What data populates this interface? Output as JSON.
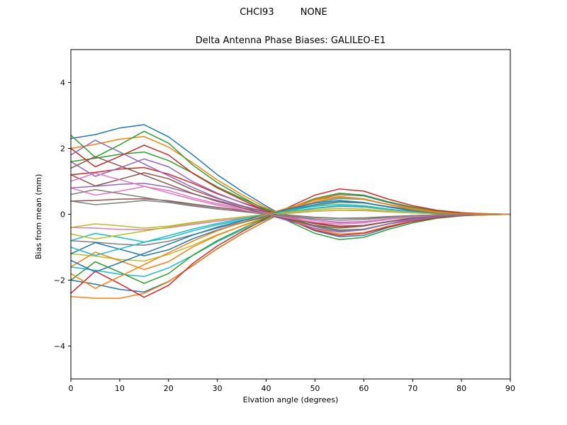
{
  "figure": {
    "suptitle": "CHCI93         NONE"
  },
  "chart_data": {
    "type": "line",
    "title": "Delta Antenna Phase Biases: GALILEO-E1",
    "suptitle": "CHCI93         NONE",
    "xlabel": "Elvation angle (degrees)",
    "ylabel": "Bias from mean (mm)",
    "xlim": [
      0,
      90
    ],
    "ylim": [
      -5,
      5
    ],
    "xticks": [
      0,
      10,
      20,
      30,
      40,
      50,
      60,
      70,
      80,
      90
    ],
    "yticks": [
      -4,
      -2,
      0,
      2,
      4
    ],
    "grid": false,
    "legend": "none",
    "x": [
      0,
      5,
      10,
      15,
      20,
      25,
      30,
      35,
      40,
      45,
      50,
      55,
      60,
      65,
      70,
      75,
      80,
      85,
      90
    ],
    "series": [
      {
        "color": "#1f77b4",
        "values": [
          2.3,
          2.42,
          2.62,
          2.72,
          2.35,
          1.8,
          1.2,
          0.7,
          0.25,
          -0.18,
          -0.5,
          -0.68,
          -0.64,
          -0.4,
          -0.22,
          -0.1,
          -0.04,
          -0.02,
          0
        ]
      },
      {
        "color": "#ff7f0e",
        "values": [
          2.0,
          2.12,
          2.28,
          2.36,
          2.04,
          1.56,
          1.04,
          0.6,
          0.2,
          -0.16,
          -0.44,
          -0.6,
          -0.56,
          -0.36,
          -0.2,
          -0.1,
          -0.04,
          -0.02,
          0
        ]
      },
      {
        "color": "#2ca02c",
        "values": [
          1.6,
          1.7,
          1.82,
          1.89,
          1.63,
          1.25,
          0.83,
          0.48,
          0.16,
          -0.13,
          -0.35,
          -0.48,
          -0.45,
          -0.29,
          -0.16,
          -0.08,
          -0.03,
          -0.02,
          0
        ]
      },
      {
        "color": "#d62728",
        "values": [
          1.2,
          1.27,
          1.37,
          1.42,
          1.22,
          0.94,
          0.62,
          0.36,
          0.12,
          -0.1,
          -0.26,
          -0.36,
          -0.34,
          -0.22,
          -0.12,
          -0.06,
          -0.02,
          -0.01,
          0
        ]
      },
      {
        "color": "#9467bd",
        "values": [
          0.8,
          0.85,
          0.91,
          0.94,
          0.82,
          0.62,
          0.42,
          0.24,
          0.08,
          -0.06,
          -0.18,
          -0.24,
          -0.22,
          -0.14,
          -0.08,
          -0.04,
          -0.02,
          -0.01,
          0
        ]
      },
      {
        "color": "#8c564b",
        "values": [
          0.4,
          0.42,
          0.46,
          0.47,
          0.41,
          0.31,
          0.21,
          0.12,
          0.04,
          -0.03,
          -0.09,
          -0.12,
          -0.11,
          -0.07,
          -0.04,
          -0.02,
          -0.01,
          0,
          0
        ]
      },
      {
        "color": "#e377c2",
        "values": [
          -0.4,
          -0.42,
          -0.46,
          -0.47,
          -0.41,
          -0.31,
          -0.21,
          -0.12,
          -0.04,
          0.03,
          0.09,
          0.12,
          0.11,
          0.07,
          0.04,
          0.02,
          0.01,
          0,
          0
        ]
      },
      {
        "color": "#7f7f7f",
        "values": [
          -0.8,
          -0.85,
          -0.91,
          -0.94,
          -0.82,
          -0.62,
          -0.42,
          -0.24,
          -0.08,
          0.06,
          0.18,
          0.24,
          0.22,
          0.14,
          0.08,
          0.04,
          0.02,
          0.01,
          0
        ]
      },
      {
        "color": "#bcbd22",
        "values": [
          -1.2,
          -1.27,
          -1.37,
          -1.42,
          -1.22,
          -0.94,
          -0.62,
          -0.36,
          -0.12,
          0.1,
          0.26,
          0.36,
          0.34,
          0.22,
          0.12,
          0.06,
          0.02,
          0.01,
          0
        ]
      },
      {
        "color": "#17becf",
        "values": [
          -1.6,
          -1.7,
          -1.82,
          -1.89,
          -1.63,
          -1.25,
          -0.83,
          -0.48,
          -0.16,
          0.13,
          0.35,
          0.48,
          0.45,
          0.29,
          0.16,
          0.08,
          0.03,
          0.02,
          0
        ]
      },
      {
        "color": "#1f77b4",
        "values": [
          -2.0,
          -2.12,
          -2.28,
          -2.36,
          -2.04,
          -1.56,
          -1.04,
          -0.6,
          -0.2,
          0.16,
          0.44,
          0.6,
          0.56,
          0.36,
          0.2,
          0.1,
          0.04,
          0.02,
          0
        ]
      },
      {
        "color": "#ff7f0e",
        "values": [
          -2.5,
          -2.55,
          -2.55,
          -2.4,
          -2.05,
          -1.55,
          -1.05,
          -0.6,
          -0.2,
          0.15,
          0.45,
          0.62,
          0.58,
          0.38,
          0.22,
          0.1,
          0.04,
          0.02,
          0
        ]
      },
      {
        "color": "#2ca02c",
        "values": [
          2.4,
          1.73,
          2.11,
          2.52,
          2.16,
          1.49,
          0.96,
          0.53,
          0.12,
          -0.24,
          -0.58,
          -0.77,
          -0.7,
          -0.46,
          -0.26,
          -0.12,
          -0.05,
          0,
          0
        ]
      },
      {
        "color": "#d62728",
        "values": [
          2.0,
          1.44,
          1.76,
          2.1,
          1.8,
          1.24,
          0.8,
          0.44,
          0.1,
          -0.2,
          -0.48,
          -0.64,
          -0.58,
          -0.38,
          -0.22,
          -0.1,
          -0.04,
          0,
          0
        ]
      },
      {
        "color": "#9467bd",
        "values": [
          1.6,
          1.15,
          1.41,
          1.68,
          1.44,
          0.99,
          0.64,
          0.35,
          0.08,
          -0.16,
          -0.38,
          -0.51,
          -0.46,
          -0.3,
          -0.18,
          -0.08,
          -0.03,
          0,
          0
        ]
      },
      {
        "color": "#8c564b",
        "values": [
          1.2,
          0.86,
          1.06,
          1.26,
          1.08,
          0.74,
          0.48,
          0.26,
          0.06,
          -0.12,
          -0.29,
          -0.38,
          -0.35,
          -0.23,
          -0.13,
          -0.06,
          -0.02,
          0,
          0
        ]
      },
      {
        "color": "#e377c2",
        "values": [
          0.8,
          0.58,
          0.7,
          0.84,
          0.72,
          0.5,
          0.32,
          0.18,
          0.04,
          -0.08,
          -0.19,
          -0.26,
          -0.23,
          -0.15,
          -0.09,
          -0.04,
          -0.02,
          0,
          0
        ]
      },
      {
        "color": "#7f7f7f",
        "values": [
          0.4,
          0.29,
          0.35,
          0.42,
          0.36,
          0.25,
          0.16,
          0.09,
          0.02,
          -0.04,
          -0.1,
          -0.13,
          -0.12,
          -0.08,
          -0.04,
          -0.02,
          -0.01,
          0,
          0
        ]
      },
      {
        "color": "#bcbd22",
        "values": [
          -0.4,
          -0.29,
          -0.35,
          -0.42,
          -0.36,
          -0.25,
          -0.16,
          -0.09,
          -0.02,
          0.04,
          0.1,
          0.13,
          0.12,
          0.08,
          0.04,
          0.02,
          0.01,
          0,
          0
        ]
      },
      {
        "color": "#17becf",
        "values": [
          -0.8,
          -0.58,
          -0.7,
          -0.84,
          -0.72,
          -0.5,
          -0.32,
          -0.18,
          -0.04,
          0.08,
          0.19,
          0.26,
          0.23,
          0.15,
          0.09,
          0.04,
          0.02,
          0,
          0
        ]
      },
      {
        "color": "#1f77b4",
        "values": [
          -1.2,
          -0.86,
          -1.06,
          -1.26,
          -1.08,
          -0.74,
          -0.48,
          -0.26,
          -0.06,
          0.12,
          0.29,
          0.38,
          0.35,
          0.23,
          0.13,
          0.06,
          0.02,
          0,
          0
        ]
      },
      {
        "color": "#ff7f0e",
        "values": [
          -1.6,
          -1.15,
          -1.41,
          -1.68,
          -1.44,
          -0.99,
          -0.64,
          -0.35,
          -0.08,
          0.16,
          0.38,
          0.51,
          0.46,
          0.3,
          0.18,
          0.08,
          0.03,
          0,
          0
        ]
      },
      {
        "color": "#2ca02c",
        "values": [
          -2.0,
          -1.44,
          -1.76,
          -2.1,
          -1.8,
          -1.24,
          -0.8,
          -0.44,
          -0.1,
          0.2,
          0.48,
          0.64,
          0.58,
          0.38,
          0.22,
          0.1,
          0.04,
          0,
          0
        ]
      },
      {
        "color": "#d62728",
        "values": [
          -2.4,
          -1.73,
          -2.11,
          -2.52,
          -2.16,
          -1.49,
          -0.96,
          -0.53,
          -0.12,
          0.24,
          0.58,
          0.77,
          0.7,
          0.46,
          0.26,
          0.12,
          0.05,
          0,
          0
        ]
      },
      {
        "color": "#9467bd",
        "values": [
          1.8,
          2.25,
          1.89,
          1.53,
          1.17,
          0.81,
          0.5,
          0.25,
          0,
          -0.22,
          -0.43,
          -0.54,
          -0.47,
          -0.29,
          -0.14,
          -0.05,
          -0.02,
          0,
          0
        ]
      },
      {
        "color": "#8c564b",
        "values": [
          1.4,
          1.75,
          1.47,
          1.19,
          0.91,
          0.63,
          0.39,
          0.2,
          0,
          -0.17,
          -0.34,
          -0.42,
          -0.36,
          -0.22,
          -0.11,
          -0.04,
          -0.01,
          0,
          0
        ]
      },
      {
        "color": "#e377c2",
        "values": [
          1.0,
          1.25,
          1.05,
          0.85,
          0.65,
          0.45,
          0.28,
          0.14,
          0,
          -0.12,
          -0.24,
          -0.3,
          -0.26,
          -0.16,
          -0.08,
          -0.03,
          -0.01,
          0,
          0
        ]
      },
      {
        "color": "#7f7f7f",
        "values": [
          0.6,
          0.75,
          0.63,
          0.51,
          0.39,
          0.27,
          0.17,
          0.08,
          0,
          -0.07,
          -0.14,
          -0.18,
          -0.16,
          -0.1,
          -0.05,
          -0.02,
          -0.01,
          0,
          0
        ]
      },
      {
        "color": "#bcbd22",
        "values": [
          -0.6,
          -0.75,
          -0.63,
          -0.51,
          -0.39,
          -0.27,
          -0.17,
          -0.08,
          0,
          0.07,
          0.14,
          0.18,
          0.16,
          0.1,
          0.05,
          0.02,
          0.01,
          0,
          0
        ]
      },
      {
        "color": "#17becf",
        "values": [
          -1.0,
          -1.25,
          -1.05,
          -0.85,
          -0.65,
          -0.45,
          -0.28,
          -0.14,
          0,
          0.12,
          0.24,
          0.3,
          0.26,
          0.16,
          0.08,
          0.03,
          0.01,
          0,
          0
        ]
      },
      {
        "color": "#1f77b4",
        "values": [
          -1.4,
          -1.75,
          -1.47,
          -1.19,
          -0.91,
          -0.63,
          -0.39,
          -0.2,
          0,
          0.17,
          0.34,
          0.42,
          0.36,
          0.22,
          0.11,
          0.04,
          0.01,
          0,
          0
        ]
      },
      {
        "color": "#ff7f0e",
        "values": [
          -1.8,
          -2.25,
          -1.89,
          -1.53,
          -1.17,
          -0.81,
          -0.5,
          -0.25,
          0,
          0.22,
          0.43,
          0.54,
          0.47,
          0.29,
          0.14,
          0.05,
          0.02,
          0,
          0
        ]
      }
    ]
  }
}
